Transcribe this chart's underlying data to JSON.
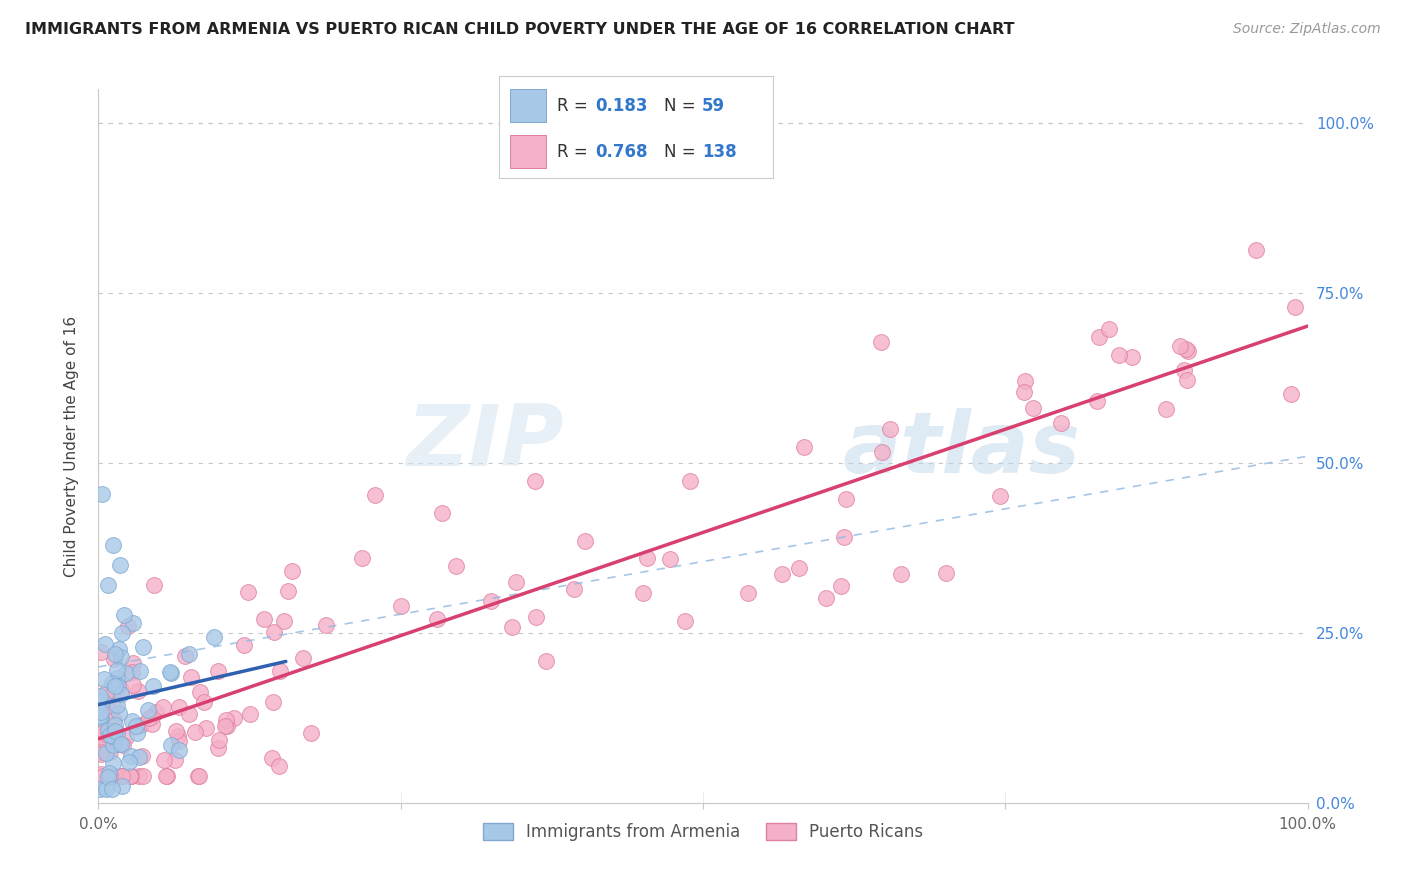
{
  "title": "IMMIGRANTS FROM ARMENIA VS PUERTO RICAN CHILD POVERTY UNDER THE AGE OF 16 CORRELATION CHART",
  "source": "Source: ZipAtlas.com",
  "ylabel": "Child Poverty Under the Age of 16",
  "xlim": [
    0.0,
    1.0
  ],
  "ylim": [
    0.0,
    1.05
  ],
  "legend_entries": [
    {
      "label": "Immigrants from Armenia",
      "R": "0.183",
      "N": "59",
      "color": "#a8c8e8",
      "edge": "#80a8d0"
    },
    {
      "label": "Puerto Ricans",
      "R": "0.768",
      "N": "138",
      "color": "#f4b0c8",
      "edge": "#e080a0"
    }
  ],
  "watermark_zip": "ZIP",
  "watermark_atlas": "atlas",
  "armenia_line_color": "#3060b0",
  "puertorico_line_color": "#d84070",
  "dash_line_color": "#90b8e0",
  "grid_color": "#c8c8c8",
  "title_color": "#222222",
  "legend_text_color": "#3377cc",
  "right_tick_color": "#4488dd",
  "background_color": "#ffffff",
  "title_fontsize": 11.5,
  "source_fontsize": 10,
  "axis_fontsize": 11,
  "ylabel_fontsize": 11
}
